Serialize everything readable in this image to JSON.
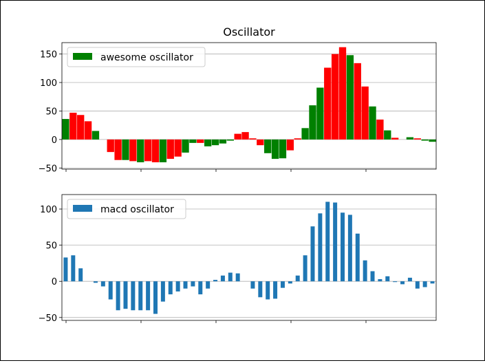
{
  "title": "Oscillator",
  "chart_data": [
    {
      "type": "bar",
      "legend": "awesome oscillator",
      "legend_placement": "top-left",
      "grid": "horizontal",
      "ylim": [
        -52,
        170
      ],
      "yticks": [
        -50,
        0,
        50,
        100,
        150
      ],
      "colors": {
        "up": "#008000",
        "down": "#ff0000"
      },
      "values": [
        36,
        47,
        43,
        32,
        15,
        0,
        -22,
        -36,
        -36,
        -38,
        -40,
        -38,
        -40,
        -40,
        -34,
        -30,
        -23,
        -6,
        -6,
        -12,
        -10,
        -7,
        -2,
        10,
        13,
        2,
        -10,
        -24,
        -34,
        -33,
        -19,
        2,
        20,
        60,
        91,
        126,
        150,
        162,
        148,
        134,
        93,
        58,
        35,
        16,
        3,
        0,
        4,
        2,
        -2,
        -4
      ],
      "bar_colors": [
        "#008000",
        "#ff0000",
        "#ff0000",
        "#ff0000",
        "#008000",
        "#ff0000",
        "#ff0000",
        "#ff0000",
        "#008000",
        "#ff0000",
        "#008000",
        "#ff0000",
        "#ff0000",
        "#008000",
        "#ff0000",
        "#ff0000",
        "#008000",
        "#008000",
        "#ff0000",
        "#008000",
        "#008000",
        "#008000",
        "#008000",
        "#ff0000",
        "#ff0000",
        "#ff0000",
        "#ff0000",
        "#008000",
        "#008000",
        "#008000",
        "#ff0000",
        "#ff0000",
        "#008000",
        "#008000",
        "#008000",
        "#ff0000",
        "#ff0000",
        "#ff0000",
        "#008000",
        "#ff0000",
        "#ff0000",
        "#008000",
        "#ff0000",
        "#008000",
        "#ff0000",
        "#ff0000",
        "#008000",
        "#ff0000",
        "#008000",
        "#008000"
      ]
    },
    {
      "type": "bar",
      "legend": "macd oscillator",
      "legend_placement": "top-left",
      "grid": "horizontal",
      "ylim": [
        -54,
        120
      ],
      "yticks": [
        -50,
        0,
        50,
        100
      ],
      "color": "#1f77b4",
      "values": [
        33,
        36,
        18,
        0,
        -2,
        -7,
        -25,
        -40,
        -38,
        -40,
        -40,
        -40,
        -45,
        -28,
        -18,
        -14,
        -10,
        -7,
        -18,
        -10,
        2,
        8,
        12,
        11,
        0,
        -10,
        -22,
        -25,
        -24,
        -9,
        -3,
        8,
        36,
        76,
        94,
        110,
        109,
        95,
        92,
        66,
        29,
        14,
        3,
        7,
        -1,
        -4,
        5,
        -10,
        -8,
        -3
      ]
    }
  ]
}
